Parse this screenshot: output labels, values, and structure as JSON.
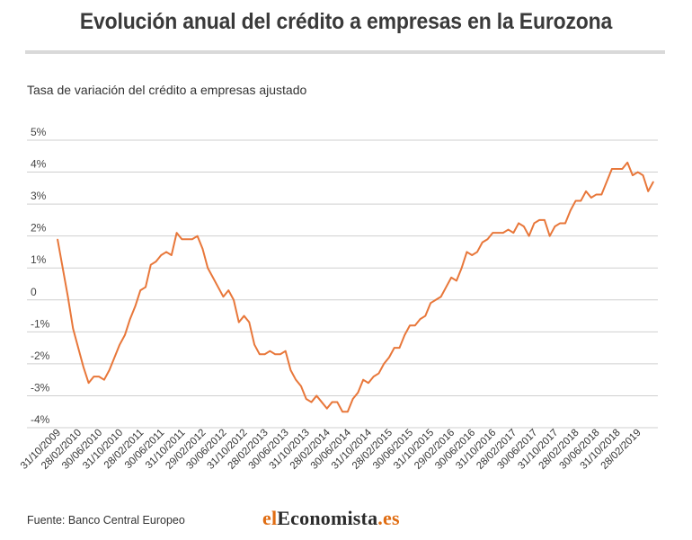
{
  "header": {
    "title": "Evolución anual del crédito a empresas en la Eurozona",
    "subtitle": "Tasa de variación del crédito a empresas ajustado"
  },
  "footer": {
    "source": "Fuente: Banco Central Europeo",
    "logo_part1": "el",
    "logo_part2": "Economista",
    "logo_part3": ".es"
  },
  "colors": {
    "line": "#e8773a",
    "grid": "#cfcfcf",
    "title": "#3a3a3a",
    "logo_accent": "#e06d13"
  },
  "chart_data": {
    "type": "line",
    "title": "Evolución anual del crédito a empresas en la Eurozona",
    "ylabel": "Tasa de variación del crédito a empresas ajustado",
    "xlabel": "",
    "ylim": [
      -4,
      5
    ],
    "y_ticks": [
      {
        "value": 5,
        "label": "5%"
      },
      {
        "value": 4,
        "label": "4%"
      },
      {
        "value": 3,
        "label": "3%"
      },
      {
        "value": 2,
        "label": "2%"
      },
      {
        "value": 1,
        "label": "1%"
      },
      {
        "value": 0,
        "label": "0"
      },
      {
        "value": -1,
        "label": "-1%"
      },
      {
        "value": -2,
        "label": "-2%"
      },
      {
        "value": -3,
        "label": "-3%"
      },
      {
        "value": -4,
        "label": "-4%"
      }
    ],
    "x_ticks": [
      {
        "index": 0,
        "label": "31/10/2009"
      },
      {
        "index": 4,
        "label": "28/02/2010"
      },
      {
        "index": 8,
        "label": "30/06/2010"
      },
      {
        "index": 12,
        "label": "31/10/2010"
      },
      {
        "index": 16,
        "label": "28/02/2011"
      },
      {
        "index": 20,
        "label": "30/06/2011"
      },
      {
        "index": 24,
        "label": "31/10/2011"
      },
      {
        "index": 28,
        "label": "29/02/2012"
      },
      {
        "index": 32,
        "label": "30/06/2012"
      },
      {
        "index": 36,
        "label": "31/10/2012"
      },
      {
        "index": 40,
        "label": "28/02/2013"
      },
      {
        "index": 44,
        "label": "30/06/2013"
      },
      {
        "index": 48,
        "label": "31/10/2013"
      },
      {
        "index": 52,
        "label": "28/02/2014"
      },
      {
        "index": 56,
        "label": "30/06/2014"
      },
      {
        "index": 60,
        "label": "31/10/2014"
      },
      {
        "index": 64,
        "label": "28/02/2015"
      },
      {
        "index": 68,
        "label": "30/06/2015"
      },
      {
        "index": 72,
        "label": "31/10/2015"
      },
      {
        "index": 76,
        "label": "29/02/2016"
      },
      {
        "index": 80,
        "label": "30/06/2016"
      },
      {
        "index": 84,
        "label": "31/10/2016"
      },
      {
        "index": 88,
        "label": "28/02/2017"
      },
      {
        "index": 92,
        "label": "30/06/2017"
      },
      {
        "index": 96,
        "label": "31/10/2017"
      },
      {
        "index": 100,
        "label": "28/02/2018"
      },
      {
        "index": 104,
        "label": "30/06/2018"
      },
      {
        "index": 108,
        "label": "31/10/2018"
      },
      {
        "index": 112,
        "label": "28/02/2019"
      }
    ],
    "series": [
      {
        "values": [
          1.9,
          1.0,
          0.1,
          -0.9,
          -1.5,
          -2.1,
          -2.6,
          -2.4,
          -2.4,
          -2.5,
          -2.2,
          -1.8,
          -1.4,
          -1.1,
          -0.6,
          -0.2,
          0.3,
          0.4,
          1.1,
          1.2,
          1.4,
          1.5,
          1.4,
          2.1,
          1.9,
          1.9,
          1.9,
          2.0,
          1.6,
          1.0,
          0.7,
          0.4,
          0.1,
          0.3,
          0.0,
          -0.7,
          -0.5,
          -0.7,
          -1.4,
          -1.7,
          -1.7,
          -1.6,
          -1.7,
          -1.7,
          -1.6,
          -2.2,
          -2.5,
          -2.7,
          -3.1,
          -3.2,
          -3.0,
          -3.2,
          -3.4,
          -3.2,
          -3.2,
          -3.5,
          -3.5,
          -3.1,
          -2.9,
          -2.5,
          -2.6,
          -2.4,
          -2.3,
          -2.0,
          -1.8,
          -1.5,
          -1.5,
          -1.1,
          -0.8,
          -0.8,
          -0.6,
          -0.5,
          -0.1,
          0.0,
          0.1,
          0.4,
          0.7,
          0.6,
          1.0,
          1.5,
          1.4,
          1.5,
          1.8,
          1.9,
          2.1,
          2.1,
          2.1,
          2.2,
          2.1,
          2.4,
          2.3,
          2.0,
          2.4,
          2.5,
          2.5,
          2.0,
          2.3,
          2.4,
          2.4,
          2.8,
          3.1,
          3.1,
          3.4,
          3.2,
          3.3,
          3.3,
          3.7,
          4.1,
          4.1,
          4.1,
          4.3,
          3.9,
          4.0,
          3.9,
          3.4,
          3.7
        ]
      }
    ]
  }
}
